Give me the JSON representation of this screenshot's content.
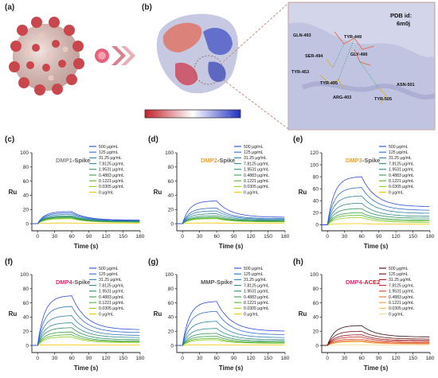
{
  "panels": {
    "a": "(a)",
    "b": "(b)",
    "c": "(c)",
    "d": "(d)",
    "e": "(e)",
    "f": "(f)",
    "g": "(g)",
    "h": "(h)"
  },
  "structure": {
    "pdb_label": "PDB id:",
    "pdb_id": "6m0j",
    "colorbar_left": "...",
    "colorbar_right": "...",
    "residues": [
      "GLN-493",
      "TYR-449",
      "SER-494",
      "GLY-496",
      "TYR-453",
      "TYR-495",
      "ASN-501",
      "ARG-403",
      "TYR-505"
    ]
  },
  "chart_data": [
    {
      "id": "c",
      "type": "line",
      "title_a": "DMP1",
      "title_b": "-Spike",
      "title_a_color": "#8a8a8a",
      "title_b_color": "#555555",
      "xlabel": "Time (s)",
      "ylabel": "Ru",
      "xlim": [
        -10,
        180
      ],
      "ylim": [
        -10,
        100
      ],
      "xticks": [
        0,
        30,
        60,
        90,
        120,
        150,
        180
      ],
      "yticks": [
        0,
        20,
        40,
        60,
        80,
        100
      ],
      "legend": [
        "500 μg/mL",
        "125 μg/mL",
        "31.25 μg/mL",
        "7.8125 μg/mL",
        "1.9531 μg/mL",
        "0.4883 μg/mL",
        "0.1221 μg/mL",
        "0.0305 μg/mL",
        "0 μg/mL"
      ],
      "colors": [
        "#2f4bd6",
        "#2f6fc7",
        "#2f7fb0",
        "#2f8a8a",
        "#2f8f60",
        "#3aa046",
        "#5ab52f",
        "#8fd020",
        "#f0c800"
      ],
      "peaks": [
        17,
        15,
        13,
        11,
        10,
        9,
        8,
        7,
        1
      ],
      "ends": [
        5,
        4.5,
        4,
        3.5,
        3,
        2.6,
        2.3,
        2,
        0.5
      ]
    },
    {
      "id": "d",
      "type": "line",
      "title_a": "DMP2",
      "title_b": "-Spike",
      "title_a_color": "#e8a13a",
      "title_b_color": "#555555",
      "xlabel": "Time (s)",
      "ylabel": "Ru",
      "xlim": [
        -10,
        180
      ],
      "ylim": [
        -10,
        100
      ],
      "xticks": [
        0,
        30,
        60,
        90,
        120,
        150,
        180
      ],
      "yticks": [
        0,
        20,
        40,
        60,
        80,
        100
      ],
      "legend": [
        "500 μg/mL",
        "125 μg/mL",
        "31.25 μg/mL",
        "7.8125 μg/mL",
        "1.9531 μg/mL",
        "0.4883 μg/mL",
        "0.1221 μg/mL",
        "0.0305 μg/mL",
        "0 μg/mL"
      ],
      "colors": [
        "#2f4bd6",
        "#2f6fc7",
        "#2f7fb0",
        "#2f8a8a",
        "#2f8f60",
        "#3aa046",
        "#5ab52f",
        "#8fd020",
        "#f0c800"
      ],
      "peaks": [
        32,
        22,
        18,
        14,
        11,
        9,
        8,
        7,
        1
      ],
      "ends": [
        9,
        7,
        6,
        5,
        4,
        3.5,
        3,
        2.5,
        0.5
      ]
    },
    {
      "id": "e",
      "type": "line",
      "title_a": "DMP3",
      "title_b": "-Spike",
      "title_a_color": "#e8a13a",
      "title_b_color": "#555555",
      "xlabel": "Time (s)",
      "ylabel": "Ru",
      "xlim": [
        -10,
        180
      ],
      "ylim": [
        -10,
        120
      ],
      "xticks": [
        0,
        30,
        60,
        90,
        120,
        150,
        180
      ],
      "yticks": [
        0,
        20,
        40,
        60,
        80,
        100,
        120
      ],
      "legend": [
        "500 μg/mL",
        "125 μg/mL",
        "31.25 μg/mL",
        "7.8125 μg/mL",
        "1.9531 μg/mL",
        "0.4883 μg/mL",
        "0.1221 μg/mL",
        "0.0305 μg/mL",
        "0 μg/mL"
      ],
      "colors": [
        "#2f4bd6",
        "#2f6fc7",
        "#2f7fb0",
        "#2f8a8a",
        "#2f8f60",
        "#3aa046",
        "#5ab52f",
        "#8fd020",
        "#f0c800"
      ],
      "peaks": [
        80,
        62,
        48,
        36,
        27,
        20,
        16,
        12,
        2
      ],
      "ends": [
        30,
        24,
        19,
        14,
        11,
        8,
        6,
        4,
        1
      ]
    },
    {
      "id": "f",
      "type": "line",
      "title_a": "DMP4",
      "title_b": "-Spike",
      "title_a_color": "#e0306a",
      "title_b_color": "#555555",
      "xlabel": "Time (s)",
      "ylabel": "Ru",
      "xlim": [
        -10,
        180
      ],
      "ylim": [
        -10,
        100
      ],
      "xticks": [
        0,
        30,
        60,
        90,
        120,
        150,
        180
      ],
      "yticks": [
        0,
        20,
        40,
        60,
        80,
        100
      ],
      "legend": [
        "500 μg/mL",
        "125 μg/mL",
        "31.25 μg/mL",
        "7.8125 μg/mL",
        "1.9531 μg/mL",
        "0.4883 μg/mL",
        "0.1221 μg/mL",
        "0.0305 μg/mL",
        "0 μg/mL"
      ],
      "colors": [
        "#2f4bd6",
        "#2f6fc7",
        "#2f7fb0",
        "#2f8a8a",
        "#2f8f60",
        "#3aa046",
        "#5ab52f",
        "#8fd020",
        "#f0c800"
      ],
      "peaks": [
        70,
        55,
        42,
        32,
        25,
        19,
        15,
        12,
        1
      ],
      "ends": [
        22,
        18,
        14,
        11,
        8,
        6,
        5,
        4,
        0.5
      ]
    },
    {
      "id": "g",
      "type": "line",
      "title_a": "MMP",
      "title_b": "-Spike",
      "title_a_color": "#555555",
      "title_b_color": "#555555",
      "xlabel": "Time (s)",
      "ylabel": "Ru",
      "xlim": [
        -10,
        180
      ],
      "ylim": [
        -10,
        100
      ],
      "xticks": [
        0,
        30,
        60,
        90,
        120,
        150,
        180
      ],
      "yticks": [
        0,
        20,
        40,
        60,
        80,
        100
      ],
      "legend": [
        "500 μg/mL",
        "125 μg/mL",
        "31.25 μg/mL",
        "7.8125 μg/mL",
        "1.9531 μg/mL",
        "0.4883 μg/mL",
        "0.1221 μg/mL",
        "0.0305 μg/mL",
        "0 μg/mL"
      ],
      "colors": [
        "#2f4bd6",
        "#2f6fc7",
        "#2f7fb0",
        "#2f8a8a",
        "#2f8f60",
        "#3aa046",
        "#5ab52f",
        "#8fd020",
        "#f0c800"
      ],
      "peaks": [
        62,
        48,
        34,
        24,
        17,
        13,
        10,
        8,
        1
      ],
      "ends": [
        20,
        15,
        11,
        8,
        6,
        4.5,
        3.5,
        3,
        0.5
      ]
    },
    {
      "id": "h",
      "type": "line",
      "title_a": "DMP4",
      "title_b": "-ACE2",
      "title_a_color": "#e0306a",
      "title_b_color": "#c0202a",
      "xlabel": "Time (s)",
      "ylabel": "Ru",
      "xlim": [
        -10,
        180
      ],
      "ylim": [
        -10,
        100
      ],
      "xticks": [
        0,
        30,
        60,
        90,
        120,
        150,
        180
      ],
      "yticks": [
        0,
        20,
        40,
        60,
        80,
        100
      ],
      "legend": [
        "500 μg/mL",
        "125 μg/mL",
        "31.25 μg/mL",
        "7.8125 μg/mL",
        "1.9531 μg/mL",
        "0.4883 μg/mL",
        "0.1221 μg/mL",
        "0.0305 μg/mL",
        "0 μg/mL"
      ],
      "colors": [
        "#3a0a0a",
        "#6a1010",
        "#9a1818",
        "#c02020",
        "#d84a2a",
        "#e8743a",
        "#f09a4a",
        "#f5bd60",
        "#f8d890"
      ],
      "peaks": [
        28,
        20,
        15,
        12,
        9,
        7,
        6,
        5,
        1
      ],
      "ends": [
        12,
        9,
        7,
        5.5,
        4,
        3,
        2.5,
        2,
        0.5
      ]
    }
  ]
}
